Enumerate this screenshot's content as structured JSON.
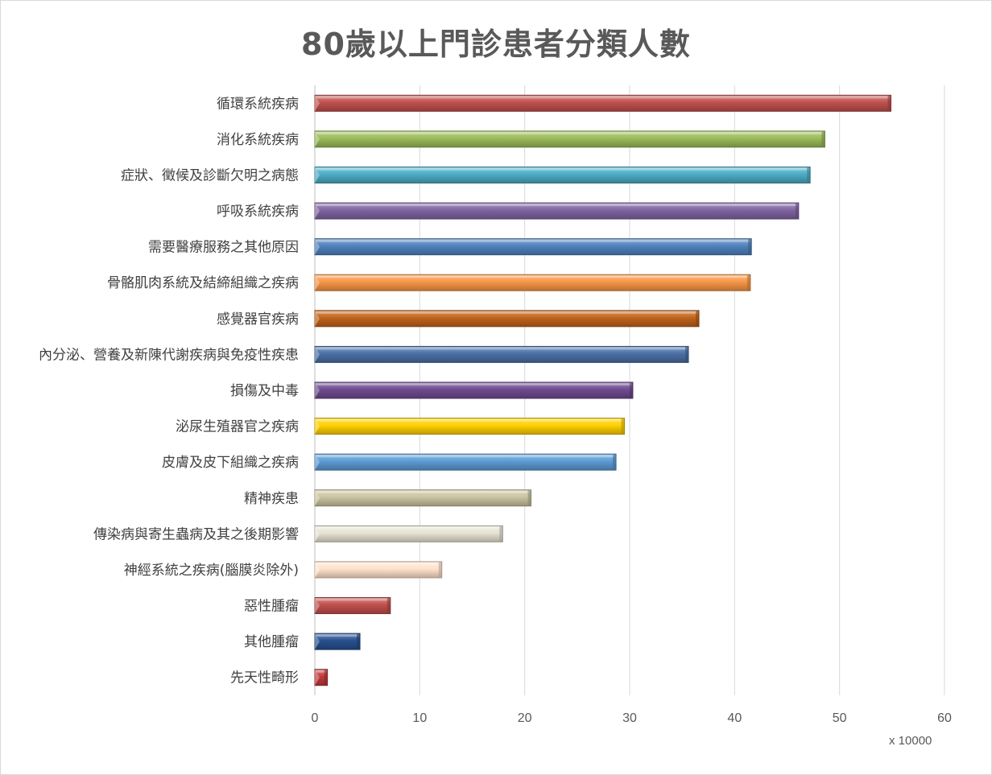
{
  "chart_data": {
    "type": "bar",
    "orientation": "horizontal",
    "title": "80歲以上門診患者分類人數",
    "unit_label": "x 10000",
    "xlim": [
      0,
      60
    ],
    "x_ticks": [
      "0",
      "10",
      "20",
      "30",
      "40",
      "50",
      "60"
    ],
    "grid": "vertical",
    "categories": [
      "循環系統疾病",
      "消化系統疾病",
      "症狀、徵候及診斷欠明之病態",
      "呼吸系統疾病",
      "需要醫療服務之其他原因",
      "骨骼肌肉系統及結締組織之疾病",
      "感覺器官疾病",
      "內分泌、營養及新陳代謝疾病與免疫性疾患",
      "損傷及中毒",
      "泌尿生殖器官之疾病",
      "皮膚及皮下組織之疾病",
      "精神疾患",
      "傳染病與寄生蟲病及其之後期影響",
      "神經系統之疾病(腦膜炎除外)",
      "惡性腫瘤",
      "其他腫瘤",
      "先天性畸形"
    ],
    "values": [
      54.9,
      48.6,
      47.2,
      46.1,
      41.6,
      41.5,
      36.6,
      35.6,
      30.3,
      29.5,
      28.7,
      20.6,
      17.9,
      12.1,
      7.2,
      4.3,
      1.2
    ],
    "colors": [
      "#c0504d",
      "#9bbb59",
      "#4bacc6",
      "#8064a2",
      "#4f81bd",
      "#f79646",
      "#c0631a",
      "#4a6fa5",
      "#6f4a8f",
      "#ffd000",
      "#5b9bd5",
      "#c9c4a0",
      "#e6e3d3",
      "#ffe2cc",
      "#c0504d",
      "#27508f",
      "#c0393b"
    ]
  }
}
